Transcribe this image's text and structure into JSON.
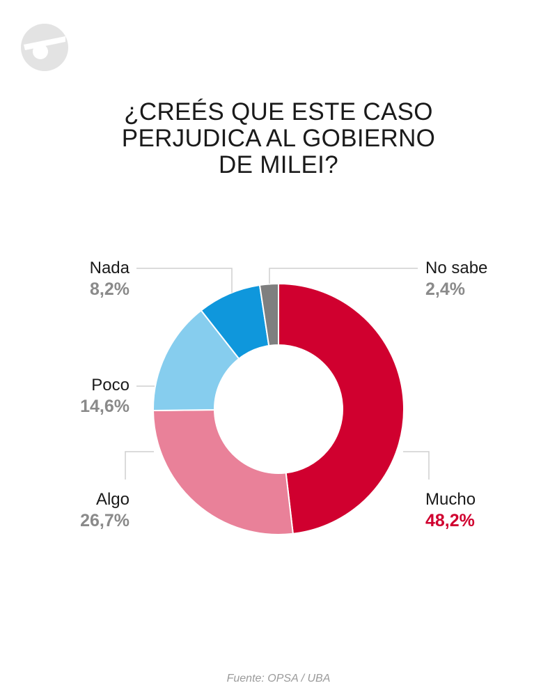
{
  "logo": {
    "icon": "brand-logo-icon",
    "color": "#e3e3e3"
  },
  "chart_data": {
    "type": "pie",
    "title": [
      "¿CREÉS QUE ESTE CASO",
      "PERJUDICA AL GOBIERNO",
      "DE MILEI?"
    ],
    "donut": true,
    "slices": [
      {
        "label": "Mucho",
        "value": 48.2,
        "display": "48,2%",
        "color": "#d0002f"
      },
      {
        "label": "Algo",
        "value": 26.7,
        "display": "26,7%",
        "color": "#e98199"
      },
      {
        "label": "Poco",
        "value": 14.6,
        "display": "14,6%",
        "color": "#86cdee"
      },
      {
        "label": "Nada",
        "value": 8.2,
        "display": "8,2%",
        "color": "#0f97dc"
      },
      {
        "label": "No sabe",
        "value": 2.4,
        "display": "2,4%",
        "color": "#7f7f7f"
      }
    ]
  },
  "source": "Fuente: OPSA / UBA"
}
